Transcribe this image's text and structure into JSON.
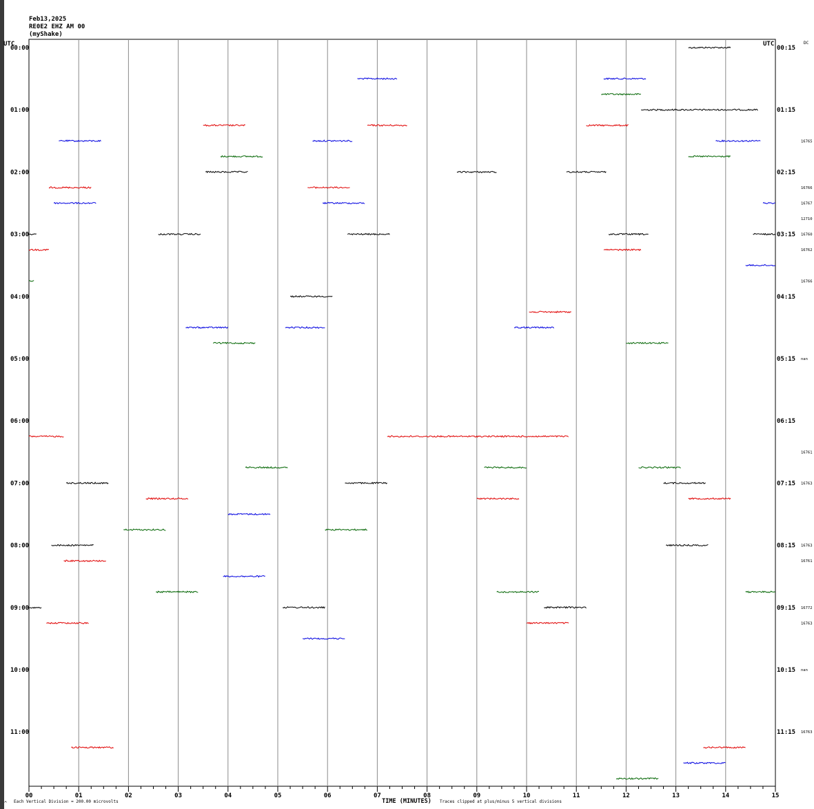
{
  "header": {
    "date": "Feb13,2025",
    "station": "RE0E2 EHZ AM 00",
    "source": "(myShake)"
  },
  "corner_labels": {
    "left_utc": "UTC",
    "right_utc": "UTC",
    "right_dc": "DC"
  },
  "footer": {
    "vertical_division": "Each Vertical Division =  200.00 microvolts",
    "clip_note": "Traces clipped at plus/minus 5 vertical divisions",
    "corner_mark": "^"
  },
  "chart_data": {
    "type": "line",
    "title": "",
    "xlabel": "TIME (MINUTES)",
    "ylabel": "",
    "xlim": [
      0,
      15
    ],
    "x_ticks": [
      "00",
      "01",
      "02",
      "03",
      "04",
      "05",
      "06",
      "07",
      "08",
      "09",
      "10",
      "11",
      "12",
      "13",
      "14",
      "15"
    ],
    "y_rows": 48,
    "row_minutes": 15,
    "grid": "vertical lines each minute",
    "colors": {
      "black": "#000000",
      "red": "#e00000",
      "blue": "#0000e0",
      "green": "#006400"
    },
    "row_color_cycle": [
      "black",
      "red",
      "blue",
      "green"
    ],
    "left_labels": [
      {
        "row": 0,
        "text": "00:00"
      },
      {
        "row": 4,
        "text": "01:00"
      },
      {
        "row": 8,
        "text": "02:00"
      },
      {
        "row": 12,
        "text": "03:00"
      },
      {
        "row": 16,
        "text": "04:00"
      },
      {
        "row": 20,
        "text": "05:00"
      },
      {
        "row": 24,
        "text": "06:00"
      },
      {
        "row": 28,
        "text": "07:00"
      },
      {
        "row": 32,
        "text": "08:00"
      },
      {
        "row": 36,
        "text": "09:00"
      },
      {
        "row": 40,
        "text": "10:00"
      },
      {
        "row": 44,
        "text": "11:00"
      }
    ],
    "right_labels": [
      {
        "row": 0,
        "text": "00:15"
      },
      {
        "row": 4,
        "text": "01:15"
      },
      {
        "row": 8,
        "text": "02:15"
      },
      {
        "row": 12,
        "text": "03:15"
      },
      {
        "row": 16,
        "text": "04:15"
      },
      {
        "row": 20,
        "text": "05:15"
      },
      {
        "row": 24,
        "text": "06:15"
      },
      {
        "row": 28,
        "text": "07:15"
      },
      {
        "row": 32,
        "text": "08:15"
      },
      {
        "row": 36,
        "text": "09:15"
      },
      {
        "row": 40,
        "text": "10:15"
      },
      {
        "row": 44,
        "text": "11:15"
      }
    ],
    "dc_values": [
      {
        "row": 6,
        "text": "16765"
      },
      {
        "row": 9,
        "text": "16766"
      },
      {
        "row": 10,
        "text": "16767"
      },
      {
        "row": 11,
        "text": "12710"
      },
      {
        "row": 12,
        "text": "16760"
      },
      {
        "row": 13,
        "text": "16762"
      },
      {
        "row": 15,
        "text": "16766"
      },
      {
        "row": 20,
        "text": "nan"
      },
      {
        "row": 26,
        "text": "16761"
      },
      {
        "row": 28,
        "text": "16763"
      },
      {
        "row": 32,
        "text": "16763"
      },
      {
        "row": 33,
        "text": "16761"
      },
      {
        "row": 36,
        "text": "16772"
      },
      {
        "row": 37,
        "text": "16763"
      },
      {
        "row": 40,
        "text": "nan"
      },
      {
        "row": 44,
        "text": "16763"
      }
    ],
    "segments": [
      {
        "row": 0,
        "x0": 13.25,
        "x1": 14.1
      },
      {
        "row": 2,
        "x0": 6.6,
        "x1": 7.4
      },
      {
        "row": 2,
        "x0": 11.55,
        "x1": 12.4
      },
      {
        "row": 3,
        "x0": 11.5,
        "x1": 12.3
      },
      {
        "row": 4,
        "x0": 12.3,
        "x1": 14.65
      },
      {
        "row": 5,
        "x0": 3.5,
        "x1": 4.35
      },
      {
        "row": 5,
        "x0": 6.8,
        "x1": 7.6
      },
      {
        "row": 5,
        "x0": 11.2,
        "x1": 12.05
      },
      {
        "row": 6,
        "x0": 0.6,
        "x1": 1.45
      },
      {
        "row": 6,
        "x0": 5.7,
        "x1": 6.5
      },
      {
        "row": 6,
        "x0": 13.8,
        "x1": 14.7
      },
      {
        "row": 7,
        "x0": 3.85,
        "x1": 4.7
      },
      {
        "row": 7,
        "x0": 13.25,
        "x1": 14.1
      },
      {
        "row": 8,
        "x0": 3.55,
        "x1": 4.4
      },
      {
        "row": 8,
        "x0": 8.6,
        "x1": 9.4
      },
      {
        "row": 8,
        "x0": 10.8,
        "x1": 11.6
      },
      {
        "row": 9,
        "x0": 0.4,
        "x1": 1.25
      },
      {
        "row": 9,
        "x0": 5.6,
        "x1": 6.45
      },
      {
        "row": 10,
        "x0": 0.5,
        "x1": 1.35
      },
      {
        "row": 10,
        "x0": 5.9,
        "x1": 6.75
      },
      {
        "row": 10,
        "x0": 14.75,
        "x1": 15.0
      },
      {
        "row": 12,
        "x0": 0.0,
        "x1": 0.15
      },
      {
        "row": 12,
        "x0": 2.6,
        "x1": 3.45
      },
      {
        "row": 12,
        "x0": 6.4,
        "x1": 7.25
      },
      {
        "row": 12,
        "x0": 11.65,
        "x1": 12.45
      },
      {
        "row": 12,
        "x0": 14.55,
        "x1": 15.0
      },
      {
        "row": 13,
        "x0": 0.0,
        "x1": 0.4
      },
      {
        "row": 13,
        "x0": 11.55,
        "x1": 12.3
      },
      {
        "row": 14,
        "x0": 14.4,
        "x1": 15.0
      },
      {
        "row": 15,
        "x0": 0.0,
        "x1": 0.1
      },
      {
        "row": 16,
        "x0": 5.25,
        "x1": 6.1
      },
      {
        "row": 17,
        "x0": 10.05,
        "x1": 10.9
      },
      {
        "row": 18,
        "x0": 3.15,
        "x1": 4.0
      },
      {
        "row": 18,
        "x0": 5.15,
        "x1": 5.95
      },
      {
        "row": 18,
        "x0": 9.75,
        "x1": 10.55
      },
      {
        "row": 19,
        "x0": 3.7,
        "x1": 4.55
      },
      {
        "row": 19,
        "x0": 12.0,
        "x1": 12.85
      },
      {
        "row": 25,
        "x0": 0.0,
        "x1": 0.7
      },
      {
        "row": 25,
        "x0": 7.2,
        "x1": 10.85
      },
      {
        "row": 27,
        "x0": 4.35,
        "x1": 5.2
      },
      {
        "row": 27,
        "x0": 9.15,
        "x1": 10.0
      },
      {
        "row": 27,
        "x0": 12.25,
        "x1": 13.1
      },
      {
        "row": 28,
        "x0": 0.75,
        "x1": 1.6
      },
      {
        "row": 28,
        "x0": 6.35,
        "x1": 7.2
      },
      {
        "row": 28,
        "x0": 12.75,
        "x1": 13.6
      },
      {
        "row": 29,
        "x0": 2.35,
        "x1": 3.2
      },
      {
        "row": 29,
        "x0": 9.0,
        "x1": 9.85
      },
      {
        "row": 29,
        "x0": 13.25,
        "x1": 14.1
      },
      {
        "row": 30,
        "x0": 4.0,
        "x1": 4.85
      },
      {
        "row": 31,
        "x0": 1.9,
        "x1": 2.75
      },
      {
        "row": 31,
        "x0": 5.95,
        "x1": 6.8
      },
      {
        "row": 32,
        "x0": 0.45,
        "x1": 1.3
      },
      {
        "row": 32,
        "x0": 12.8,
        "x1": 13.65
      },
      {
        "row": 33,
        "x0": 0.7,
        "x1": 1.55
      },
      {
        "row": 34,
        "x0": 3.9,
        "x1": 4.75
      },
      {
        "row": 35,
        "x0": 2.55,
        "x1": 3.4
      },
      {
        "row": 35,
        "x0": 9.4,
        "x1": 10.25
      },
      {
        "row": 35,
        "x0": 14.4,
        "x1": 15.0
      },
      {
        "row": 36,
        "x0": 0.0,
        "x1": 0.25
      },
      {
        "row": 36,
        "x0": 5.1,
        "x1": 5.95
      },
      {
        "row": 36,
        "x0": 10.35,
        "x1": 11.2
      },
      {
        "row": 37,
        "x0": 0.35,
        "x1": 1.2
      },
      {
        "row": 37,
        "x0": 10.0,
        "x1": 10.85
      },
      {
        "row": 38,
        "x0": 5.5,
        "x1": 6.35
      },
      {
        "row": 45,
        "x0": 0.85,
        "x1": 1.7
      },
      {
        "row": 45,
        "x0": 13.55,
        "x1": 14.4
      },
      {
        "row": 46,
        "x0": 13.15,
        "x1": 14.0
      },
      {
        "row": 47,
        "x0": 11.8,
        "x1": 12.65
      }
    ]
  }
}
